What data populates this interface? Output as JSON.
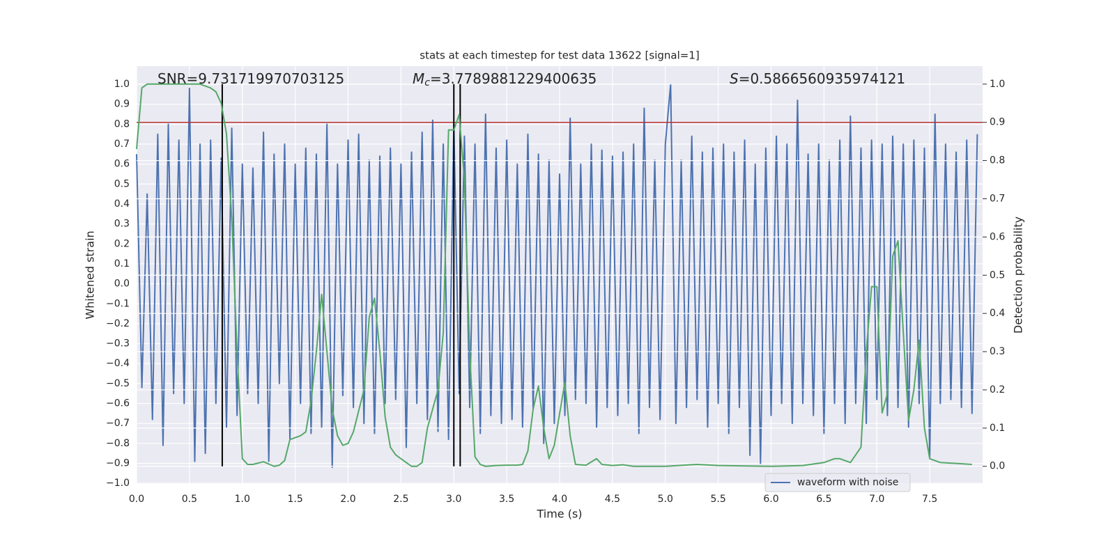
{
  "chart_data": {
    "type": "line",
    "title": "stats at each timestep for test data 13622 [signal=1]",
    "xlabel": "Time (s)",
    "ylabel": "Whitened strain",
    "y2label": "Detection probability",
    "annotations": [
      {
        "text": "SNR=9.731719970703125"
      },
      {
        "symbol": "M",
        "sub": "c",
        "text": "=3.7789881229400635"
      },
      {
        "symbol": "S",
        "text": "=0.5866560935974121"
      }
    ],
    "xlim": [
      0,
      8.0
    ],
    "ylim": [
      -1.003,
      1.091
    ],
    "y2lim": [
      -0.046,
      1.047
    ],
    "xticks": [
      {
        "value": 0,
        "label": "0.0"
      },
      {
        "value": 0.5,
        "label": "0.5"
      },
      {
        "value": 1,
        "label": "1.0"
      },
      {
        "value": 1.5,
        "label": "1.5"
      },
      {
        "value": 2,
        "label": "2.0"
      },
      {
        "value": 2.5,
        "label": "2.5"
      },
      {
        "value": 3,
        "label": "3.0"
      },
      {
        "value": 3.5,
        "label": "3.5"
      },
      {
        "value": 4,
        "label": "4.0"
      },
      {
        "value": 4.5,
        "label": "4.5"
      },
      {
        "value": 5,
        "label": "5.0"
      },
      {
        "value": 5.5,
        "label": "5.5"
      },
      {
        "value": 6,
        "label": "6.0"
      },
      {
        "value": 6.5,
        "label": "6.5"
      },
      {
        "value": 7,
        "label": "7.0"
      },
      {
        "value": 7.5,
        "label": "7.5"
      }
    ],
    "yticks": [
      {
        "value": -1,
        "label": "−1.0"
      },
      {
        "value": -0.9,
        "label": "−0.9"
      },
      {
        "value": -0.8,
        "label": "−0.8"
      },
      {
        "value": -0.7,
        "label": "−0.7"
      },
      {
        "value": -0.6,
        "label": "−0.6"
      },
      {
        "value": -0.5,
        "label": "−0.5"
      },
      {
        "value": -0.4,
        "label": "−0.4"
      },
      {
        "value": -0.3,
        "label": "−0.3"
      },
      {
        "value": -0.2,
        "label": "−0.2"
      },
      {
        "value": -0.1,
        "label": "−0.1"
      },
      {
        "value": 0,
        "label": "0.0"
      },
      {
        "value": 0.1,
        "label": "0.1"
      },
      {
        "value": 0.2,
        "label": "0.2"
      },
      {
        "value": 0.3,
        "label": "0.3"
      },
      {
        "value": 0.4,
        "label": "0.4"
      },
      {
        "value": 0.5,
        "label": "0.5"
      },
      {
        "value": 0.6,
        "label": "0.6"
      },
      {
        "value": 0.7,
        "label": "0.7"
      },
      {
        "value": 0.8,
        "label": "0.8"
      },
      {
        "value": 0.9,
        "label": "0.9"
      },
      {
        "value": 1,
        "label": "1.0"
      }
    ],
    "y2ticks": [
      {
        "value": 0,
        "label": "0.0"
      },
      {
        "value": 0.1,
        "label": "0.1"
      },
      {
        "value": 0.2,
        "label": "0.2"
      },
      {
        "value": 0.3,
        "label": "0.3"
      },
      {
        "value": 0.4,
        "label": "0.4"
      },
      {
        "value": 0.5,
        "label": "0.5"
      },
      {
        "value": 0.6,
        "label": "0.6"
      },
      {
        "value": 0.7,
        "label": "0.7"
      },
      {
        "value": 0.8,
        "label": "0.8"
      },
      {
        "value": 0.9,
        "label": "0.9"
      },
      {
        "value": 1,
        "label": "1.0"
      }
    ],
    "grid": true,
    "legend": "lower right",
    "series": [
      {
        "name": "waveform with noise",
        "color": "#4c72b0",
        "x": [
          0,
          0.05,
          0.1,
          0.15,
          0.2,
          0.25,
          0.3,
          0.35,
          0.4,
          0.45,
          0.5,
          0.55,
          0.6,
          0.65,
          0.7,
          0.75,
          0.8,
          0.85,
          0.9,
          0.95,
          1,
          1.05,
          1.1,
          1.15,
          1.2,
          1.25,
          1.3,
          1.35,
          1.4,
          1.45,
          1.5,
          1.55,
          1.6,
          1.65,
          1.7,
          1.75,
          1.8,
          1.85,
          1.9,
          1.95,
          2,
          2.05,
          2.1,
          2.15,
          2.2,
          2.25,
          2.3,
          2.35,
          2.4,
          2.45,
          2.5,
          2.55,
          2.6,
          2.65,
          2.7,
          2.75,
          2.8,
          2.85,
          2.9,
          2.95,
          3,
          3.05,
          3.1,
          3.15,
          3.2,
          3.25,
          3.3,
          3.35,
          3.4,
          3.45,
          3.5,
          3.55,
          3.6,
          3.65,
          3.7,
          3.75,
          3.8,
          3.85,
          3.9,
          3.95,
          4,
          4.05,
          4.1,
          4.15,
          4.2,
          4.25,
          4.3,
          4.35,
          4.4,
          4.45,
          4.5,
          4.55,
          4.6,
          4.65,
          4.7,
          4.75,
          4.8,
          4.85,
          4.9,
          4.95,
          5,
          5.05,
          5.1,
          5.15,
          5.2,
          5.25,
          5.3,
          5.35,
          5.4,
          5.45,
          5.5,
          5.55,
          5.6,
          5.65,
          5.7,
          5.75,
          5.8,
          5.85,
          5.9,
          5.95,
          6,
          6.05,
          6.1,
          6.15,
          6.2,
          6.25,
          6.3,
          6.35,
          6.4,
          6.45,
          6.5,
          6.55,
          6.6,
          6.65,
          6.7,
          6.75,
          6.8,
          6.85,
          6.9,
          6.95,
          7,
          7.05,
          7.1,
          7.15,
          7.2,
          7.25,
          7.3,
          7.35,
          7.4,
          7.45,
          7.5,
          7.55,
          7.6,
          7.65,
          7.7,
          7.75,
          7.8,
          7.85,
          7.9,
          7.95
        ],
        "values": [
          0.65,
          -0.52,
          0.45,
          -0.68,
          0.75,
          -0.81,
          0.8,
          -0.55,
          0.72,
          -0.6,
          0.98,
          -0.89,
          0.7,
          -0.85,
          0.72,
          -0.6,
          0.63,
          -0.72,
          0.78,
          -0.66,
          0.6,
          -0.55,
          0.58,
          -0.6,
          0.76,
          -0.89,
          0.65,
          -0.5,
          0.7,
          -0.78,
          0.6,
          -0.6,
          0.68,
          -0.75,
          0.65,
          -0.72,
          0.8,
          -0.92,
          0.6,
          -0.56,
          0.72,
          -0.62,
          0.75,
          -0.7,
          0.62,
          -0.75,
          0.64,
          -0.6,
          0.68,
          -0.58,
          0.6,
          -0.82,
          0.66,
          -0.6,
          0.76,
          -0.68,
          0.82,
          -0.74,
          0.7,
          -0.78,
          0.8,
          -0.55,
          0.74,
          -0.62,
          0.7,
          -0.75,
          0.85,
          -0.66,
          0.68,
          -0.7,
          0.72,
          -0.68,
          0.6,
          -0.72,
          0.75,
          -0.63,
          0.65,
          -0.8,
          0.62,
          -0.7,
          0.55,
          -0.66,
          0.83,
          -0.58,
          0.6,
          -0.6,
          0.7,
          -0.72,
          0.67,
          -0.62,
          0.64,
          -0.66,
          0.66,
          -0.6,
          0.7,
          -0.75,
          0.88,
          -0.62,
          0.62,
          -0.68,
          0.7,
          1.0,
          -0.7,
          0.62,
          -0.62,
          0.74,
          -0.58,
          0.66,
          -0.72,
          0.68,
          -0.6,
          0.7,
          -0.75,
          0.66,
          -0.62,
          0.72,
          -0.86,
          0.6,
          -0.9,
          0.68,
          -0.66,
          0.74,
          -0.6,
          0.7,
          -0.7,
          0.92,
          -0.6,
          0.65,
          -0.66,
          0.7,
          -0.75,
          0.62,
          -0.6,
          0.72,
          -0.7,
          0.84,
          -0.6,
          0.68,
          -0.7,
          0.72,
          -0.58,
          0.7,
          -0.66,
          0.74,
          -0.62,
          0.7,
          -0.72,
          0.72,
          -0.6,
          0.68,
          -0.87,
          0.85,
          -0.6,
          0.7,
          -0.58,
          0.66,
          -0.62,
          0.72,
          -0.65,
          0.75
        ]
      },
      {
        "color": "#55a868",
        "axis": "y2",
        "x": [
          0,
          0.05,
          0.1,
          0.2,
          0.3,
          0.4,
          0.5,
          0.6,
          0.7,
          0.75,
          0.8,
          0.85,
          0.9,
          0.95,
          1,
          1.05,
          1.1,
          1.2,
          1.3,
          1.35,
          1.4,
          1.45,
          1.55,
          1.6,
          1.65,
          1.7,
          1.75,
          1.8,
          1.85,
          1.9,
          1.95,
          2,
          2.05,
          2.15,
          2.2,
          2.25,
          2.3,
          2.35,
          2.4,
          2.45,
          2.55,
          2.6,
          2.65,
          2.7,
          2.75,
          2.85,
          2.9,
          2.95,
          3,
          3.05,
          3.1,
          3.15,
          3.2,
          3.25,
          3.3,
          3.4,
          3.5,
          3.6,
          3.65,
          3.7,
          3.75,
          3.8,
          3.85,
          3.9,
          3.95,
          4.05,
          4.1,
          4.15,
          4.25,
          4.35,
          4.4,
          4.5,
          4.6,
          4.7,
          5,
          5.3,
          5.5,
          6,
          6.3,
          6.5,
          6.6,
          6.65,
          6.75,
          6.85,
          6.9,
          6.95,
          7,
          7.05,
          7.1,
          7.15,
          7.2,
          7.25,
          7.3,
          7.35,
          7.4,
          7.45,
          7.5,
          7.6,
          7.9
        ],
        "values": [
          0.83,
          0.99,
          1.0,
          1.0,
          1.0,
          1.0,
          1.0,
          1.0,
          0.99,
          0.98,
          0.95,
          0.87,
          0.65,
          0.3,
          0.02,
          0.005,
          0.005,
          0.012,
          0.0,
          0.003,
          0.015,
          0.07,
          0.08,
          0.09,
          0.17,
          0.3,
          0.45,
          0.3,
          0.15,
          0.08,
          0.055,
          0.06,
          0.09,
          0.2,
          0.39,
          0.44,
          0.3,
          0.13,
          0.05,
          0.03,
          0.01,
          0.0,
          0.0,
          0.01,
          0.1,
          0.2,
          0.35,
          0.88,
          0.88,
          0.92,
          0.75,
          0.3,
          0.025,
          0.005,
          0.0,
          0.002,
          0.003,
          0.003,
          0.005,
          0.04,
          0.15,
          0.21,
          0.1,
          0.02,
          0.055,
          0.22,
          0.08,
          0.005,
          0.003,
          0.02,
          0.005,
          0.002,
          0.004,
          0.0,
          0.0,
          0.005,
          0.002,
          0.0,
          0.002,
          0.01,
          0.02,
          0.02,
          0.01,
          0.05,
          0.3,
          0.47,
          0.47,
          0.14,
          0.19,
          0.55,
          0.59,
          0.35,
          0.12,
          0.2,
          0.33,
          0.1,
          0.02,
          0.01,
          0.005
        ]
      }
    ],
    "hline": {
      "value": 0.9,
      "axis": "y2",
      "color": "#b83232"
    },
    "vlines": [
      0.81,
      3.0,
      3.06
    ],
    "vline_color": "#000000"
  }
}
